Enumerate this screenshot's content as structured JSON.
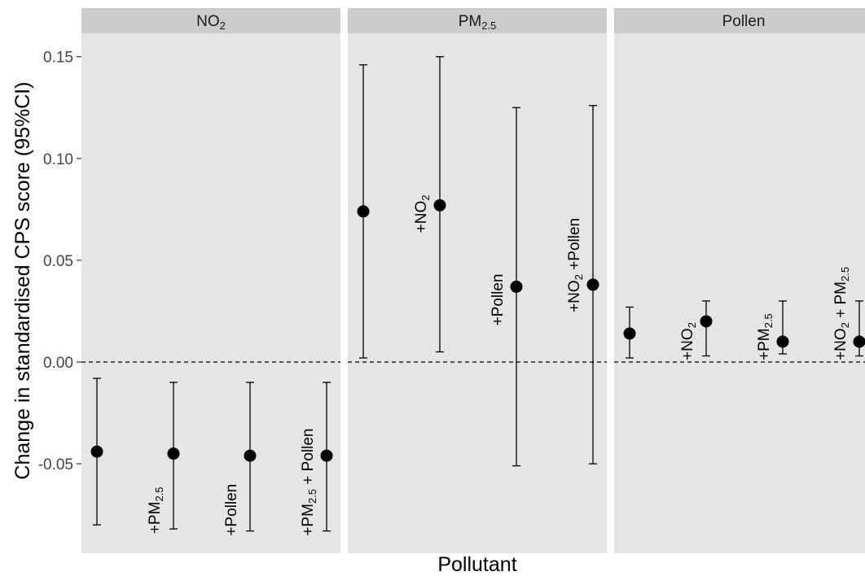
{
  "chart_data": {
    "type": "scatter",
    "subtype": "point-with-errorbars",
    "ylabel": "Change in standardised CPS score (95%CI)",
    "xlabel": "Pollutant",
    "ylim": [
      -0.092,
      0.163
    ],
    "yticks": [
      0.15,
      0.1,
      0.05,
      0.0,
      -0.05
    ],
    "ytick_labels": [
      "0.15",
      "0.10",
      "0.05",
      "0.00",
      "-0.05"
    ],
    "reference_line": {
      "y": 0,
      "style": "dashed"
    },
    "grid": false,
    "legend": "none",
    "facets": [
      {
        "name": "NO2",
        "name_main": "NO",
        "name_sub": "2",
        "points": [
          {
            "label": "",
            "label_main": "",
            "label_sub": "",
            "label_rest": "",
            "y": -0.044,
            "lo": -0.08,
            "hi": -0.008
          },
          {
            "label": "+PM2.5",
            "label_main": "+PM",
            "label_sub": "2.5",
            "label_rest": "",
            "y": -0.045,
            "lo": -0.082,
            "hi": -0.01
          },
          {
            "label": "+Pollen",
            "label_main": "+Pollen",
            "label_sub": "",
            "label_rest": "",
            "y": -0.046,
            "lo": -0.083,
            "hi": -0.01
          },
          {
            "label": "+PM2.5 + Pollen",
            "label_main": "+PM",
            "label_sub": "2.5",
            "label_rest": " + Pollen",
            "y": -0.046,
            "lo": -0.083,
            "hi": -0.01
          }
        ]
      },
      {
        "name": "PM2.5",
        "name_main": "PM",
        "name_sub": "2.5",
        "points": [
          {
            "label": "",
            "label_main": "",
            "label_sub": "",
            "label_rest": "",
            "y": 0.074,
            "lo": 0.002,
            "hi": 0.146
          },
          {
            "label": "+NO2",
            "label_main": "+NO",
            "label_sub": "2",
            "label_rest": "",
            "y": 0.077,
            "lo": 0.005,
            "hi": 0.15
          },
          {
            "label": "+Pollen",
            "label_main": "+Pollen",
            "label_sub": "",
            "label_rest": "",
            "y": 0.037,
            "lo": -0.051,
            "hi": 0.125
          },
          {
            "label": "+NO2 +Pollen",
            "label_main": "+NO",
            "label_sub": "2",
            "label_rest": " +Pollen",
            "y": 0.038,
            "lo": -0.05,
            "hi": 0.126
          }
        ]
      },
      {
        "name": "Pollen",
        "name_main": "Pollen",
        "name_sub": "",
        "points": [
          {
            "label": "",
            "label_main": "",
            "label_sub": "",
            "label_rest": "",
            "y": 0.014,
            "lo": 0.002,
            "hi": 0.027
          },
          {
            "label": "+NO2",
            "label_main": "+NO",
            "label_sub": "2",
            "label_rest": "",
            "y": 0.02,
            "lo": 0.003,
            "hi": 0.03
          },
          {
            "label": "+PM2.5",
            "label_main": "+PM",
            "label_sub": "2.5",
            "label_rest": "",
            "y": 0.01,
            "lo": 0.004,
            "hi": 0.03
          },
          {
            "label": "+NO2 + PM2.5",
            "label_main": "+NO",
            "label_sub": "2",
            "label_rest": " + PM",
            "label_sub2": "2.5",
            "y": 0.01,
            "lo": 0.003,
            "hi": 0.03
          }
        ]
      }
    ],
    "colors": {
      "panel_bg": "#e5e5e5",
      "strip_bg": "#cccccc",
      "point": "#000000"
    }
  }
}
